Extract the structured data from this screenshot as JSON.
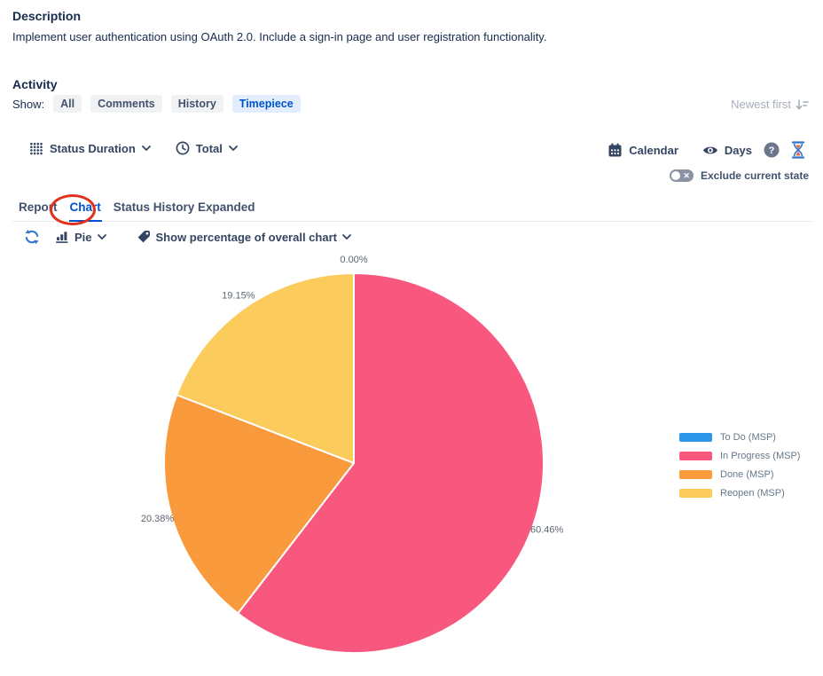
{
  "description": {
    "title": "Description",
    "body": "Implement user authentication using OAuth 2.0. Include a sign-in page and user registration functionality."
  },
  "activity": {
    "title": "Activity",
    "show_label": "Show:",
    "filters": [
      {
        "label": "All",
        "active": false
      },
      {
        "label": "Comments",
        "active": false
      },
      {
        "label": "History",
        "active": false
      },
      {
        "label": "Timepiece",
        "active": true
      }
    ],
    "sort_label": "Newest first"
  },
  "toolbar": {
    "status_duration_label": "Status Duration",
    "total_label": "Total",
    "calendar_label": "Calendar",
    "days_label": "Days",
    "exclude_current_state_label": "Exclude current state"
  },
  "tabs": [
    {
      "label": "Report",
      "active": false
    },
    {
      "label": "Chart",
      "active": true,
      "annotated": true
    },
    {
      "label": "Status History Expanded",
      "active": false
    }
  ],
  "chart_controls": {
    "chart_type_label": "Pie",
    "display_mode_label": "Show percentage of overall chart"
  },
  "chart_data": {
    "type": "pie",
    "title": "",
    "start_angle_deg": 0,
    "direction": "clockwise",
    "legend_position": "right",
    "data_label_format": "0.00%",
    "slices": [
      {
        "label": "To Do (MSP)",
        "value": 0,
        "color": "#2E96E8"
      },
      {
        "label": "In Progress (MSP)",
        "value": 60.46,
        "color": "#F8587D"
      },
      {
        "label": "Done (MSP)",
        "value": 20.38,
        "color": "#F99A3D"
      },
      {
        "label": "Reopen (MSP)",
        "value": 19.15,
        "color": "#FBCB5C"
      }
    ]
  },
  "colors": {
    "accent_blue": "#0052CC",
    "heading": "#172B4D",
    "control_text": "#344563",
    "muted_grey": "#A5ADBA",
    "annotation_red": "#E0301E",
    "slice_border": "#FFFFFF"
  }
}
